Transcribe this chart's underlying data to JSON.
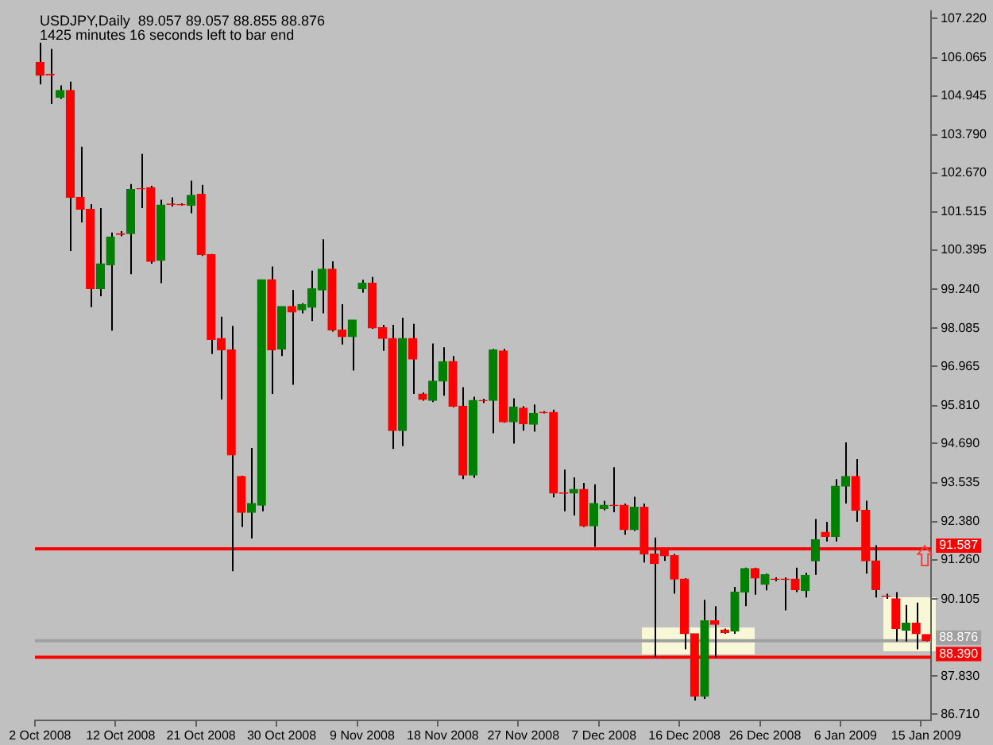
{
  "chart_data": {
    "type": "candlestick",
    "title": "USDJPY,Daily  89.057 89.057 88.855 88.876",
    "subtitle": "1425 minutes 16 seconds left to bar end",
    "categories": [
      "2 Oct 2008",
      null,
      null,
      null,
      null,
      null,
      null,
      null,
      "12 Oct 2008",
      null,
      null,
      null,
      null,
      null,
      null,
      null,
      "21 Oct 2008",
      null,
      null,
      null,
      null,
      null,
      null,
      null,
      "30 Oct 2008",
      null,
      null,
      null,
      null,
      null,
      null,
      null,
      "9 Nov 2008",
      null,
      null,
      null,
      null,
      null,
      null,
      null,
      "18 Nov 2008",
      null,
      null,
      null,
      null,
      null,
      null,
      null,
      "27 Nov 2008",
      null,
      null,
      null,
      null,
      null,
      null,
      null,
      "7 Dec 2008",
      null,
      null,
      null,
      null,
      null,
      null,
      null,
      "16 Dec 2008",
      null,
      null,
      null,
      null,
      null,
      null,
      null,
      "26 Dec 2008",
      null,
      null,
      null,
      null,
      null,
      null,
      null,
      "6 Jan 2009",
      null,
      null,
      null,
      null,
      null,
      null,
      null,
      "15 Jan 2009"
    ],
    "ohlc": [
      [
        105.93,
        106.51,
        105.28,
        105.55
      ],
      [
        105.58,
        106.33,
        104.7,
        105.56
      ],
      [
        104.9,
        105.25,
        104.85,
        105.1
      ],
      [
        105.1,
        105.36,
        100.37,
        101.95
      ],
      [
        101.95,
        103.44,
        101.21,
        101.6
      ],
      [
        101.6,
        101.75,
        98.71,
        99.26
      ],
      [
        99.26,
        101.63,
        99.03,
        99.99
      ],
      [
        99.96,
        100.91,
        98.02,
        100.78
      ],
      [
        100.88,
        100.95,
        100.8,
        100.86
      ],
      [
        100.88,
        102.34,
        99.68,
        102.18
      ],
      [
        102.21,
        103.23,
        101.63,
        102.2
      ],
      [
        102.24,
        102.29,
        99.99,
        100.06
      ],
      [
        100.09,
        101.88,
        99.42,
        101.72
      ],
      [
        101.75,
        101.95,
        101.68,
        101.74
      ],
      [
        101.74,
        101.77,
        101.71,
        101.73
      ],
      [
        101.71,
        102.44,
        101.48,
        102.01
      ],
      [
        102.04,
        102.32,
        100.22,
        100.26
      ],
      [
        100.26,
        100.28,
        97.33,
        97.76
      ],
      [
        97.79,
        98.43,
        95.99,
        97.45
      ],
      [
        97.45,
        98.16,
        90.92,
        94.35
      ],
      [
        93.72,
        93.74,
        92.23,
        92.66
      ],
      [
        92.66,
        94.56,
        91.89,
        92.92
      ],
      [
        92.87,
        99.52,
        92.69,
        99.52
      ],
      [
        99.52,
        99.91,
        96.15,
        97.45
      ],
      [
        97.48,
        98.73,
        97.27,
        98.73
      ],
      [
        98.73,
        99.22,
        96.42,
        98.57
      ],
      [
        98.63,
        98.83,
        98.53,
        98.79
      ],
      [
        98.71,
        99.79,
        98.3,
        99.25
      ],
      [
        99.22,
        100.71,
        98.53,
        99.83
      ],
      [
        99.83,
        100.06,
        97.99,
        98.04
      ],
      [
        98.04,
        98.8,
        97.61,
        97.84
      ],
      [
        97.84,
        98.33,
        96.84,
        98.33
      ],
      [
        99.26,
        99.52,
        99.14,
        99.42
      ],
      [
        99.42,
        99.6,
        98.07,
        98.1
      ],
      [
        98.11,
        98.19,
        97.42,
        97.79
      ],
      [
        97.79,
        98.19,
        94.53,
        95.07
      ],
      [
        95.07,
        98.4,
        94.61,
        97.79
      ],
      [
        97.79,
        98.22,
        96.15,
        97.18
      ],
      [
        96.15,
        96.19,
        95.95,
        95.99
      ],
      [
        95.96,
        97.64,
        95.91,
        96.53
      ],
      [
        96.53,
        97.53,
        96.1,
        97.1
      ],
      [
        97.11,
        97.27,
        95.76,
        95.79
      ],
      [
        95.79,
        96.35,
        93.64,
        93.76
      ],
      [
        93.76,
        96.07,
        93.68,
        95.96
      ],
      [
        95.96,
        96.01,
        95.88,
        95.95
      ],
      [
        95.96,
        97.48,
        94.99,
        97.45
      ],
      [
        97.42,
        97.48,
        95.3,
        95.33
      ],
      [
        95.33,
        96.02,
        94.69,
        95.76
      ],
      [
        95.73,
        95.79,
        95.07,
        95.27
      ],
      [
        95.26,
        95.84,
        95.04,
        95.58
      ],
      [
        95.61,
        95.64,
        95.58,
        95.6
      ],
      [
        95.61,
        95.69,
        93.1,
        93.23
      ],
      [
        93.23,
        93.92,
        92.69,
        93.22
      ],
      [
        93.23,
        93.69,
        92.57,
        93.34
      ],
      [
        93.34,
        93.53,
        92.23,
        92.26
      ],
      [
        92.26,
        93.49,
        91.64,
        92.92
      ],
      [
        92.77,
        93.0,
        92.72,
        92.87
      ],
      [
        92.87,
        93.99,
        92.66,
        92.86
      ],
      [
        92.87,
        92.92,
        92.0,
        92.15
      ],
      [
        92.15,
        93.12,
        92.11,
        92.81
      ],
      [
        92.81,
        92.92,
        91.18,
        91.43
      ],
      [
        91.43,
        91.92,
        88.39,
        91.15
      ],
      [
        91.54,
        91.54,
        91.23,
        91.38
      ],
      [
        91.38,
        91.43,
        90.26,
        90.69
      ],
      [
        90.69,
        90.72,
        88.62,
        89.08
      ],
      [
        89.08,
        89.08,
        87.11,
        87.24
      ],
      [
        87.24,
        90.08,
        87.16,
        89.46
      ],
      [
        89.46,
        89.89,
        88.39,
        89.36
      ],
      [
        89.19,
        89.23,
        89.08,
        89.11
      ],
      [
        89.16,
        90.46,
        89.08,
        90.31
      ],
      [
        90.31,
        91.03,
        89.89,
        91.0
      ],
      [
        91.0,
        91.03,
        90.23,
        90.72
      ],
      [
        90.54,
        90.85,
        90.36,
        90.82
      ],
      [
        90.69,
        90.74,
        90.63,
        90.68
      ],
      [
        90.69,
        90.74,
        89.77,
        90.68
      ],
      [
        90.69,
        91.03,
        90.31,
        90.38
      ],
      [
        90.35,
        90.88,
        90.15,
        90.8
      ],
      [
        91.23,
        92.46,
        90.82,
        91.85
      ],
      [
        92.07,
        92.38,
        91.8,
        91.95
      ],
      [
        91.95,
        93.64,
        91.8,
        93.43
      ],
      [
        93.43,
        94.72,
        92.92,
        93.72
      ],
      [
        93.72,
        94.23,
        92.38,
        92.72
      ],
      [
        92.72,
        93.0,
        90.85,
        91.23
      ],
      [
        91.23,
        91.69,
        90.15,
        90.38
      ],
      [
        90.19,
        90.26,
        90.11,
        90.18
      ],
      [
        90.11,
        90.31,
        88.85,
        89.23
      ],
      [
        89.19,
        89.93,
        88.85,
        89.39
      ],
      [
        89.39,
        90.0,
        88.62,
        89.08
      ],
      [
        89.057,
        89.057,
        88.855,
        88.876
      ]
    ],
    "colors": [
      "#ff0000",
      "#ff0000",
      "#008000",
      "#ff0000",
      "#ff0000",
      "#ff0000",
      "#008000",
      "#008000",
      "#ff0000",
      "#008000",
      "#ff0000",
      "#ff0000",
      "#008000",
      "#ff0000",
      "#ff0000",
      "#008000",
      "#ff0000",
      "#ff0000",
      "#ff0000",
      "#ff0000",
      "#ff0000",
      "#008000",
      "#008000",
      "#ff0000",
      "#008000",
      "#ff0000",
      "#008000",
      "#008000",
      "#008000",
      "#ff0000",
      "#ff0000",
      "#008000",
      "#008000",
      "#ff0000",
      "#ff0000",
      "#ff0000",
      "#008000",
      "#ff0000",
      "#ff0000",
      "#008000",
      "#008000",
      "#ff0000",
      "#ff0000",
      "#008000",
      "#ff0000",
      "#008000",
      "#ff0000",
      "#008000",
      "#ff0000",
      "#008000",
      "#ff0000",
      "#ff0000",
      "#ff0000",
      "#008000",
      "#ff0000",
      "#008000",
      "#008000",
      "#ff0000",
      "#ff0000",
      "#008000",
      "#ff0000",
      "#ff0000",
      "#ff0000",
      "#ff0000",
      "#ff0000",
      "#ff0000",
      "#008000",
      "#ff0000",
      "#ff0000",
      "#008000",
      "#008000",
      "#ff0000",
      "#008000",
      "#ff0000",
      "#ff0000",
      "#ff0000",
      "#008000",
      "#008000",
      "#ff0000",
      "#008000",
      "#008000",
      "#ff0000",
      "#ff0000",
      "#ff0000",
      "#ff0000",
      "#ff0000",
      "#008000",
      "#ff0000",
      "#ff0000"
    ],
    "ylim": [
      86.53,
      107.45
    ],
    "yticks": [
      {
        "value": 107.22,
        "label": "107.220"
      },
      {
        "value": 106.065,
        "label": "106.065"
      },
      {
        "value": 104.945,
        "label": "104.945"
      },
      {
        "value": 103.79,
        "label": "103.790"
      },
      {
        "value": 102.67,
        "label": "102.670"
      },
      {
        "value": 101.515,
        "label": "101.515"
      },
      {
        "value": 100.395,
        "label": "100.395"
      },
      {
        "value": 99.24,
        "label": "99.240"
      },
      {
        "value": 98.085,
        "label": "98.085"
      },
      {
        "value": 96.965,
        "label": "96.965"
      },
      {
        "value": 95.81,
        "label": "95.810"
      },
      {
        "value": 94.69,
        "label": "94.690"
      },
      {
        "value": 93.535,
        "label": "93.535"
      },
      {
        "value": 92.38,
        "label": "92.380"
      },
      {
        "value": 91.26,
        "label": "91.260"
      },
      {
        "value": 90.105,
        "label": "90.105"
      },
      {
        "value": 87.83,
        "label": "87.830"
      },
      {
        "value": 86.71,
        "label": "86.710"
      }
    ],
    "ref_lines": [
      {
        "axis": "y",
        "value": 91.587,
        "label": "91.587",
        "color": "#ff0000"
      },
      {
        "axis": "y",
        "value": 88.876,
        "label": "88.876",
        "color": "#a0a0a0"
      },
      {
        "axis": "y",
        "value": 88.39,
        "label": "88.390",
        "color": "#ff0000"
      }
    ],
    "grid": false,
    "legend": false
  }
}
